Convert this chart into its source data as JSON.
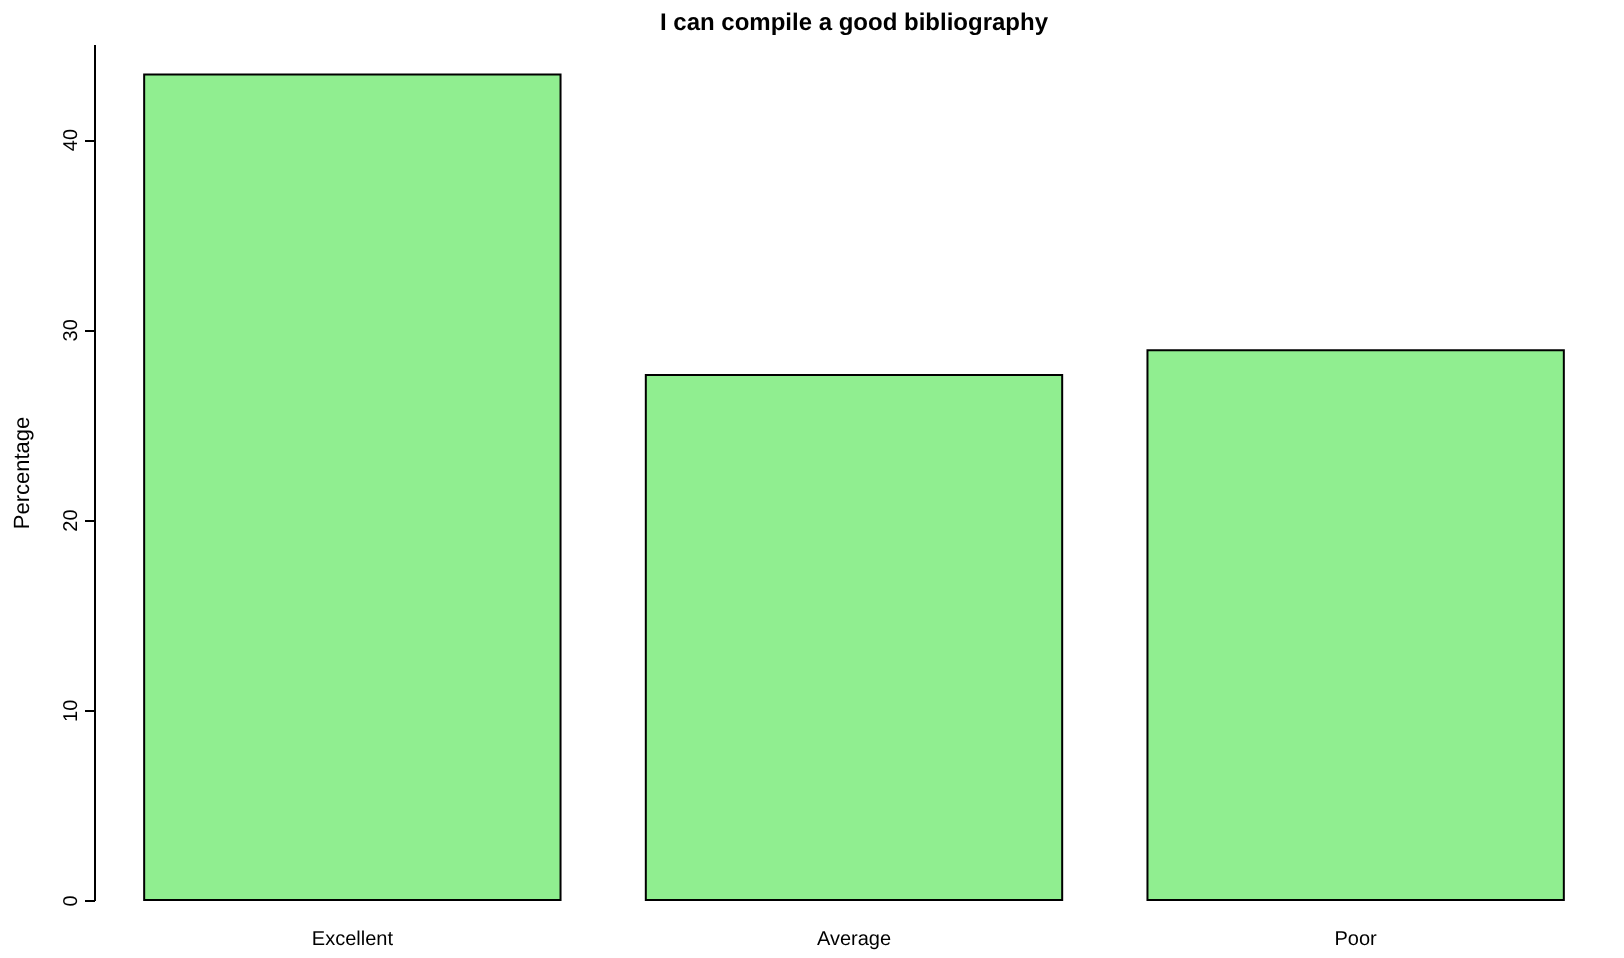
{
  "chart_data": {
    "type": "bar",
    "title": "I can compile a good bibliography",
    "ylabel": "Percentage",
    "categories": [
      "Excellent",
      "Average",
      "Poor"
    ],
    "values": [
      43.4,
      27.6,
      28.9
    ],
    "color": "#90ee90",
    "ylim": [
      0,
      45
    ],
    "yticks": [
      0,
      10,
      20,
      30,
      40
    ],
    "grid": false
  }
}
